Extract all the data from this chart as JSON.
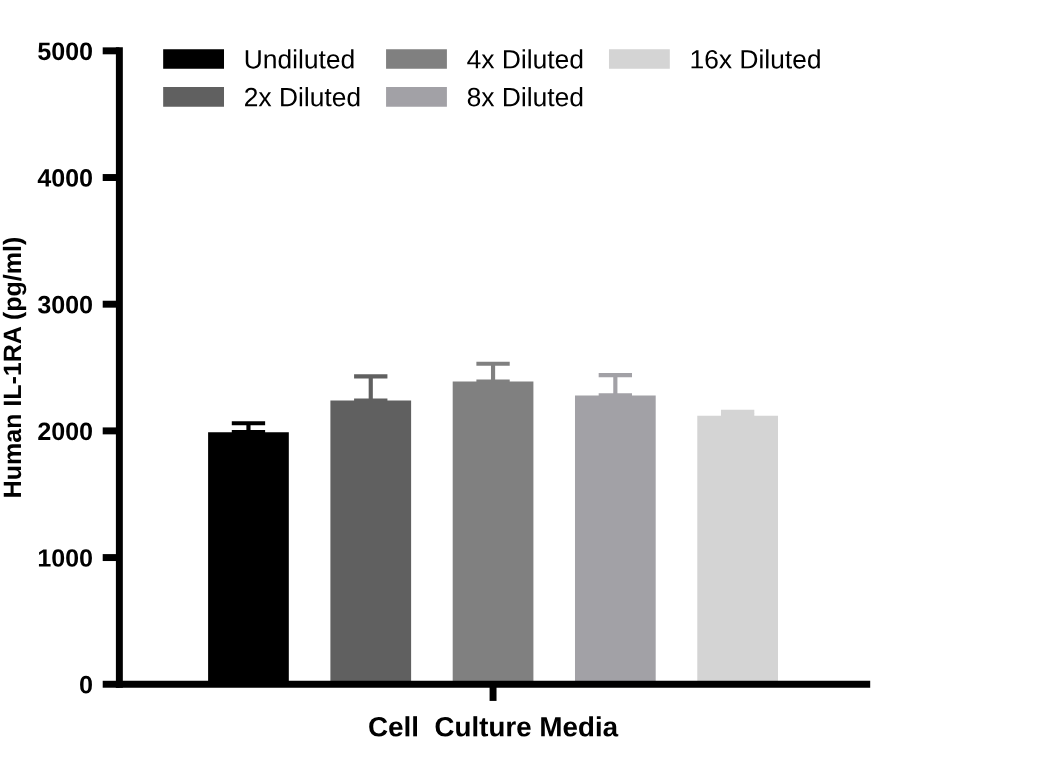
{
  "chart_data": {
    "type": "bar",
    "ylabel": "Human IL-1RA (pg/ml)",
    "xlabel": "Cell  Culture Media",
    "categories": [
      null
    ],
    "series": [
      {
        "name": "Undiluted",
        "color": "#000000",
        "values": [
          1990
        ],
        "errors": [
          [
            1990,
            2060
          ]
        ]
      },
      {
        "name": "2x Diluted",
        "color": "#606060",
        "values": [
          2240
        ],
        "errors": [
          [
            2240,
            2430
          ]
        ]
      },
      {
        "name": "4x Diluted",
        "color": "#808080",
        "values": [
          2390
        ],
        "errors": [
          [
            2390,
            2530
          ]
        ]
      },
      {
        "name": "8x Diluted",
        "color": "#a2a1a6",
        "values": [
          2280
        ],
        "errors": [
          [
            2280,
            2440
          ]
        ]
      },
      {
        "name": "16x Diluted",
        "color": "#d4d4d4",
        "values": [
          2120
        ],
        "errors": [
          [
            2120,
            2150
          ]
        ]
      }
    ],
    "ylim": [
      0,
      5000
    ],
    "yticks": [
      0,
      1000,
      2000,
      3000,
      4000,
      5000
    ],
    "grid": false,
    "legend": "top"
  }
}
